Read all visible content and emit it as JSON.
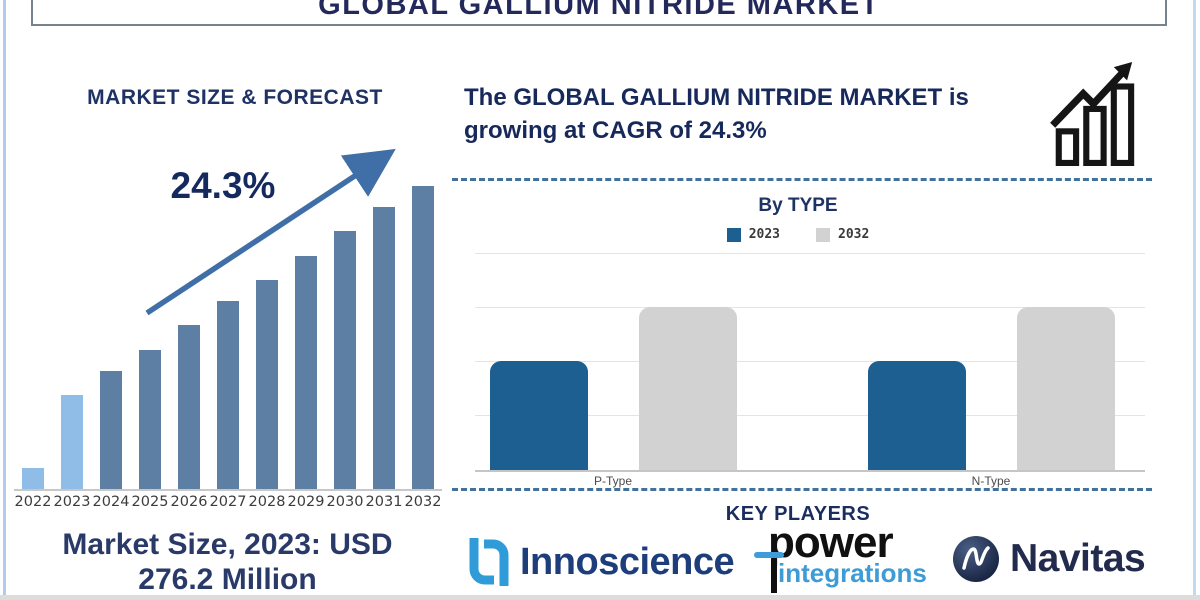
{
  "header": {
    "title": "GLOBAL GALLIUM NITRIDE MARKET"
  },
  "left_panel": {
    "heading": "MARKET SIZE & FORECAST",
    "growth_label": "24.3%",
    "market_size_line1": "Market Size, 2023: USD",
    "market_size_line2": "276.2 Million"
  },
  "right_panel": {
    "headline_line1": "The GLOBAL GALLIUM NITRIDE MARKET is",
    "headline_line2": "growing at CAGR of 24.3%",
    "by_type_heading": "By TYPE",
    "key_players_heading": "KEY PLAYERS",
    "players": [
      {
        "name": "Innoscience"
      },
      {
        "name": "power",
        "subname": "integrations"
      },
      {
        "name": "Navitas"
      }
    ]
  },
  "colors": {
    "navy_text": "#1F3264",
    "steel_bar": "#5D7FA4",
    "light_bar": "#90BCE8",
    "arrow_blue": "#3F6FA6",
    "type_2023_blue": "#1E5F92",
    "type_2032_gray": "#D2D2D2",
    "dashed_divider": "#41719C",
    "edge_light_blue": "#AFCDE9"
  },
  "icons": {
    "growth_chart_icon": "black line-art bars with rising zigzag arrow",
    "innoscience_icon": "light-blue interlocked square hooks",
    "navitas_icon": "dark navy sphere with white N swoosh",
    "power_logo_dash": "blue horizontal bar through p"
  },
  "chart_data": [
    {
      "id": "market-size-forecast",
      "type": "bar",
      "title": "MARKET SIZE & FORECAST",
      "categories": [
        "2022",
        "2023",
        "2024",
        "2025",
        "2026",
        "2027",
        "2028",
        "2029",
        "2030",
        "2031",
        "2032"
      ],
      "values": [
        7,
        31,
        39,
        46,
        54,
        62,
        69,
        77,
        85,
        93,
        100
      ],
      "unit": "relative bar height, % of 2032 bar (no value axis shown)",
      "annotation": "24.3%",
      "note": "Market Size, 2023: USD 276.2 Million; CAGR 24.3%",
      "highlight_categories": [
        "2022",
        "2023"
      ],
      "bar_color": "#5D7FA4",
      "highlight_color": "#90BCE8",
      "xlabel": "",
      "ylabel": "",
      "grid": false,
      "legend": false
    },
    {
      "id": "by-type",
      "type": "bar",
      "title": "By TYPE",
      "categories": [
        "P-Type",
        "N-Type"
      ],
      "series": [
        {
          "name": "2023",
          "color": "#1E5F92",
          "values": [
            50,
            50
          ]
        },
        {
          "name": "2032",
          "color": "#D2D2D2",
          "values": [
            75,
            75
          ]
        }
      ],
      "unit": "relative height in gridline units (no value axis shown)",
      "ylim": [
        0,
        100
      ],
      "grid": true,
      "legend_position": "top"
    }
  ]
}
